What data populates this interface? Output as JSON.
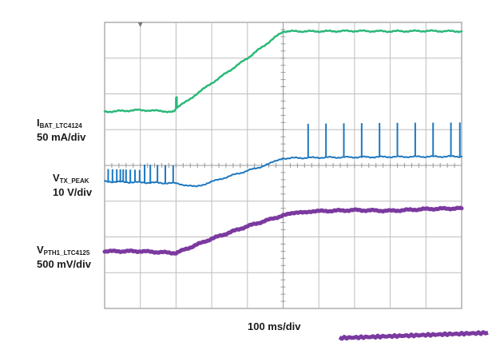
{
  "chart_data": {
    "type": "line",
    "title": "",
    "x_axis": {
      "label": "100 ms/div",
      "unit": "ms",
      "per_division": 100,
      "divisions": 10,
      "range": [
        0,
        1000
      ],
      "grid": true
    },
    "y_axis": {
      "divisions": 8,
      "grid": true
    },
    "trigger_marker_x": 100,
    "channels": [
      {
        "id": "ibat",
        "name_main": "I",
        "name_sub": "BAT_LTC4124",
        "scale": "50 mA/div",
        "color": "#2bb87a",
        "stroke": 2.5,
        "points": [
          [
            0,
            5.5
          ],
          [
            100,
            5.55
          ],
          [
            195,
            5.5
          ],
          [
            200,
            5.6
          ],
          [
            200,
            5.9
          ],
          [
            202,
            5.9
          ],
          [
            202,
            5.6
          ],
          [
            300,
            6.3
          ],
          [
            400,
            7.0
          ],
          [
            500,
            7.75
          ],
          [
            600,
            7.75
          ],
          [
            700,
            7.76
          ],
          [
            800,
            7.75
          ],
          [
            900,
            7.76
          ],
          [
            1000,
            7.75
          ]
        ]
      },
      {
        "id": "vtx",
        "name_main": "V",
        "name_sub": "TX_PEAK",
        "scale": "10 V/div",
        "color": "#1e78c0",
        "stroke": 2,
        "points": [
          [
            0,
            3.55
          ],
          [
            200,
            3.5
          ],
          [
            255,
            3.4
          ],
          [
            350,
            3.7
          ],
          [
            450,
            4.0
          ],
          [
            500,
            4.2
          ],
          [
            600,
            4.22
          ],
          [
            800,
            4.24
          ],
          [
            1000,
            4.25
          ]
        ],
        "spikes_x": [
          10,
          22,
          34,
          44,
          52,
          60,
          72,
          85,
          98,
          112,
          128,
          148,
          170,
          192,
          570,
          620,
          670,
          720,
          770,
          820,
          870,
          920,
          970,
          995
        ],
        "spike_heights": [
          0.35,
          0.35,
          0.35,
          0.35,
          0.35,
          0.35,
          0.35,
          0.35,
          0.35,
          0.5,
          0.5,
          0.5,
          0.5,
          0.5,
          0.95,
          0.95,
          0.95,
          0.95,
          0.95,
          0.95,
          0.95,
          0.95,
          0.95,
          0.95
        ]
      },
      {
        "id": "vpth",
        "name_main": "V",
        "name_sub": "PTH1_LTC4125",
        "scale": "500 mV/div",
        "color": "#7b3aa0",
        "stroke": 5,
        "points": [
          [
            0,
            1.6
          ],
          [
            100,
            1.6
          ],
          [
            200,
            1.55
          ],
          [
            300,
            1.95
          ],
          [
            400,
            2.3
          ],
          [
            500,
            2.6
          ],
          [
            550,
            2.7
          ],
          [
            600,
            2.72
          ],
          [
            700,
            2.75
          ],
          [
            800,
            2.73
          ],
          [
            900,
            2.78
          ],
          [
            1000,
            2.8
          ]
        ]
      }
    ]
  }
}
